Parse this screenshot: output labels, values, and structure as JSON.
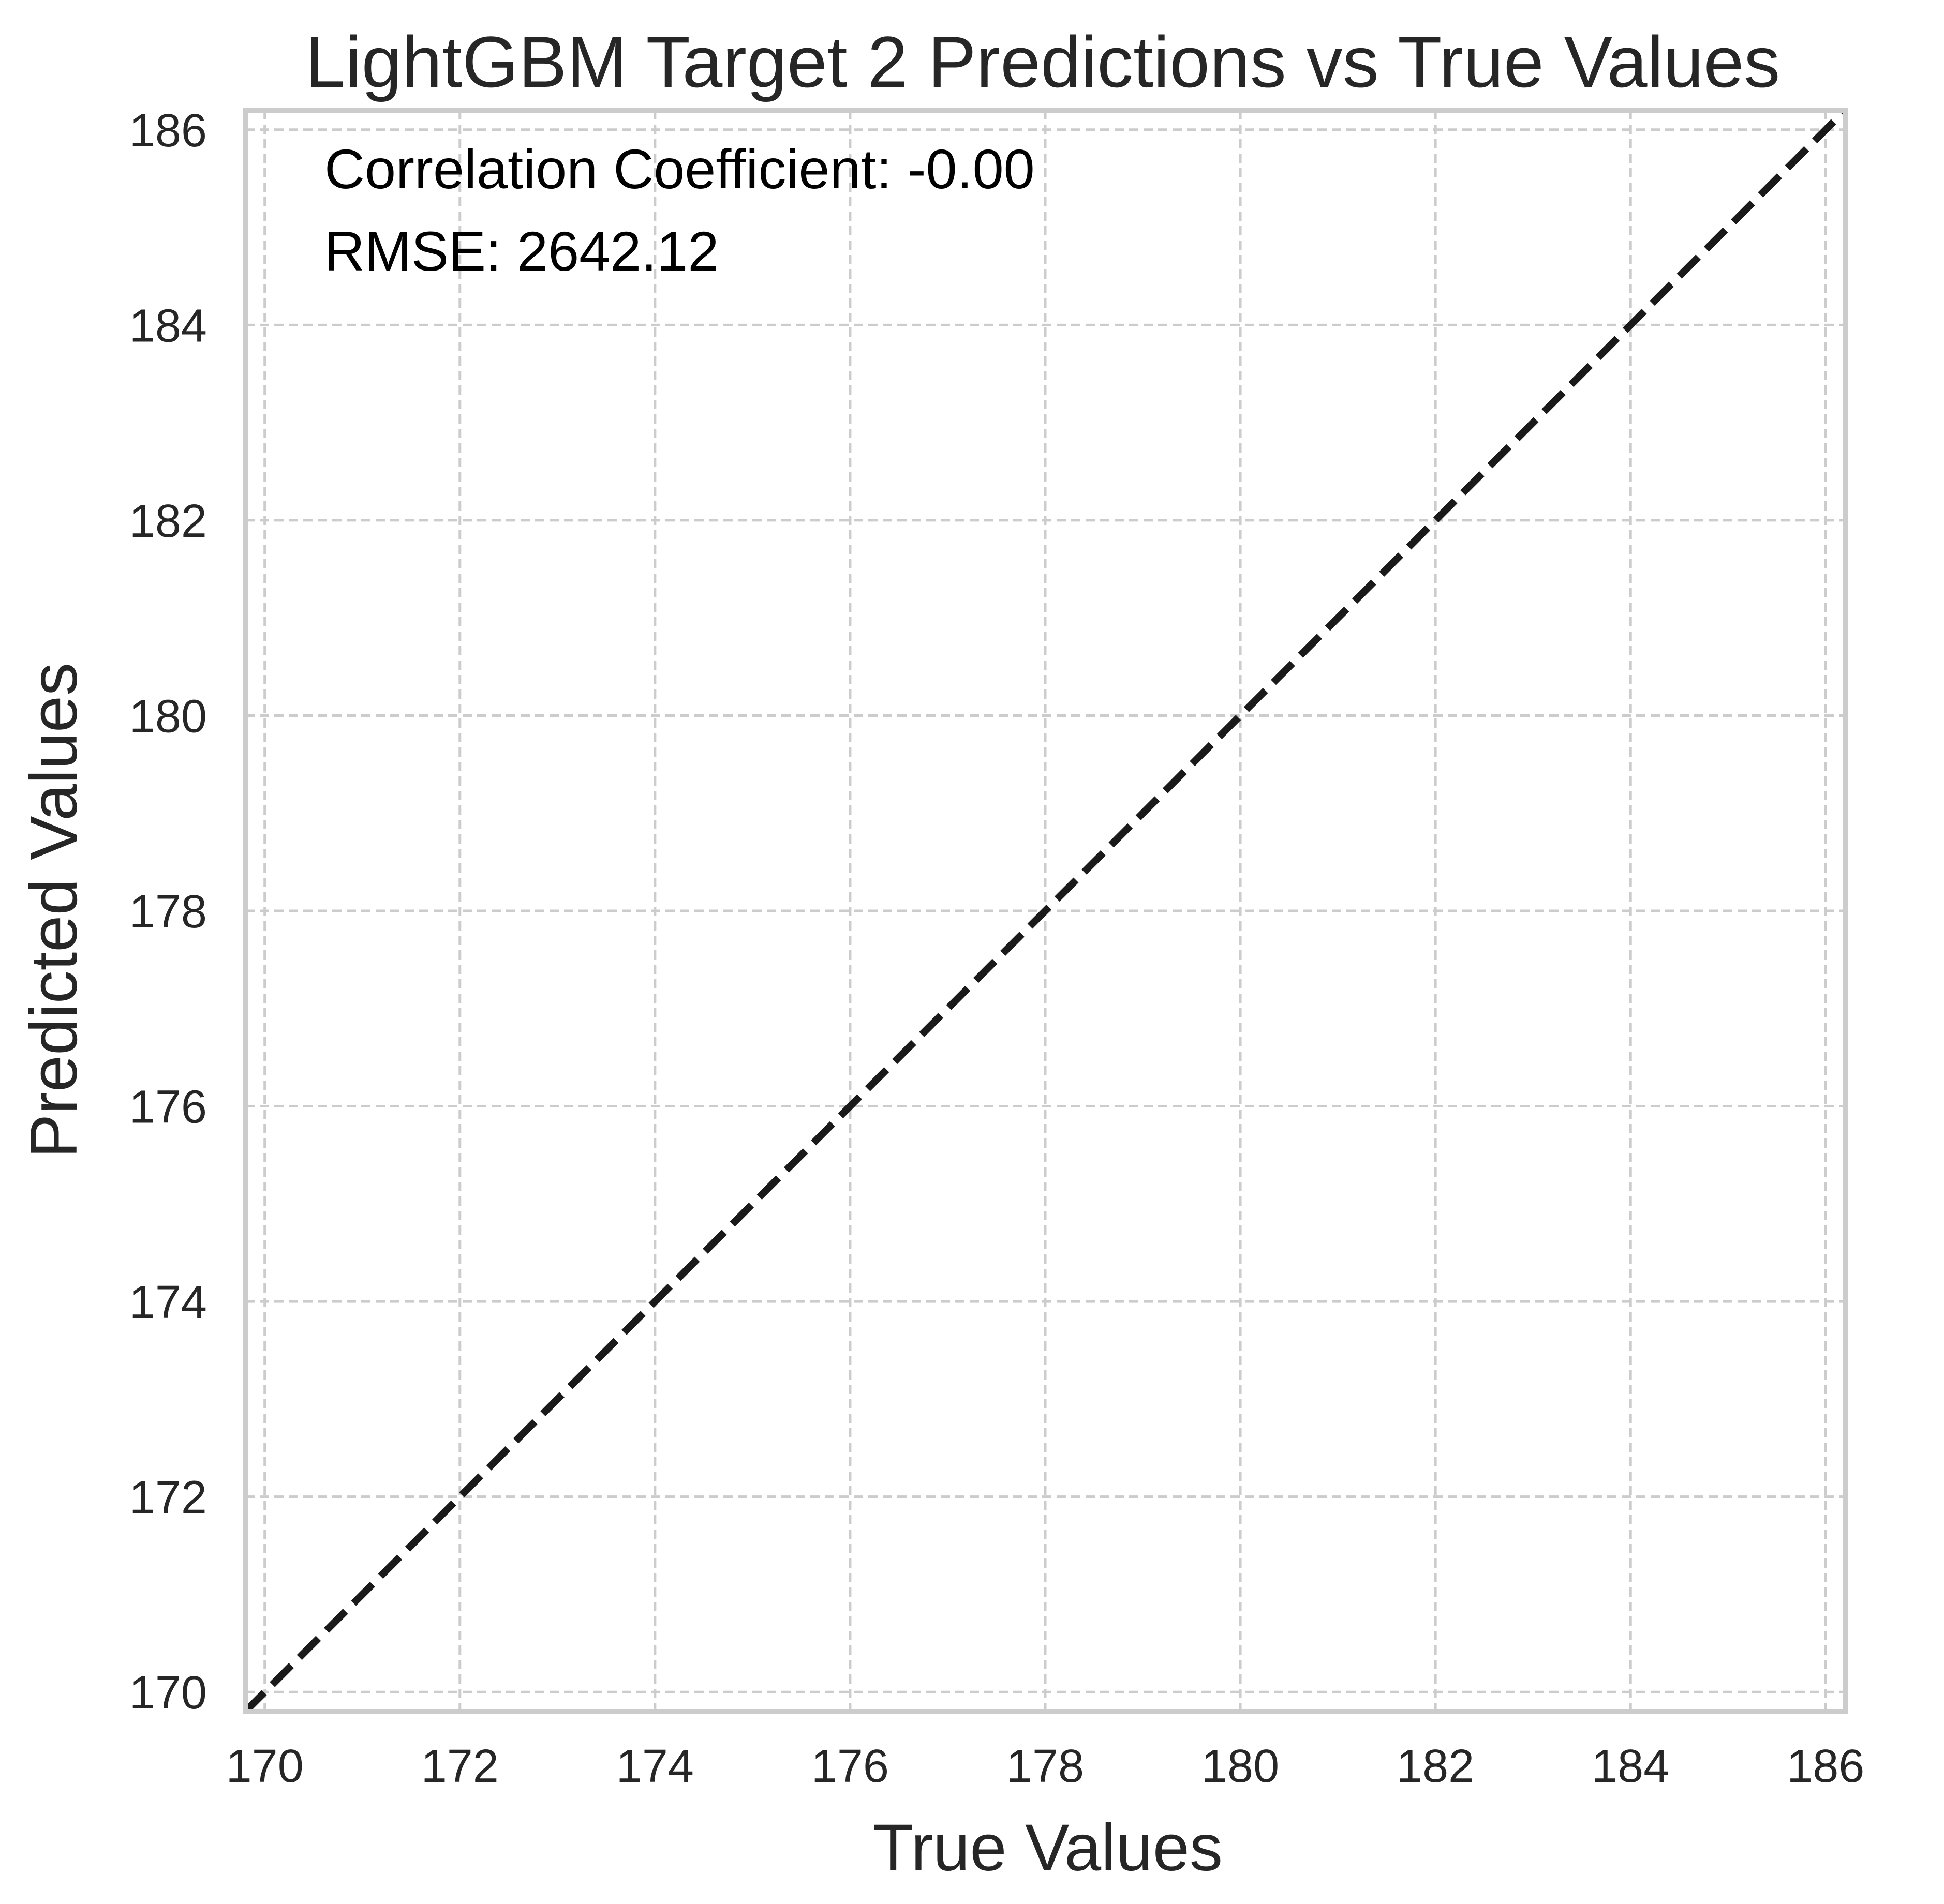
{
  "chart_data": {
    "type": "line",
    "title": "LightGBM Target 2 Predictions vs True Values",
    "xlabel": "True Values",
    "ylabel": "Predicted Values",
    "xlim": [
      169.8,
      186.2
    ],
    "ylim": [
      169.8,
      186.2
    ],
    "x_ticks": [
      170,
      172,
      174,
      176,
      178,
      180,
      182,
      184,
      186
    ],
    "y_ticks": [
      170,
      172,
      174,
      176,
      178,
      180,
      182,
      184,
      186
    ],
    "x_tick_labels": [
      "170",
      "172",
      "174",
      "176",
      "178",
      "180",
      "182",
      "184",
      "186"
    ],
    "y_tick_labels": [
      "170",
      "172",
      "174",
      "176",
      "178",
      "180",
      "182",
      "184",
      "186"
    ],
    "grid": true,
    "grid_style": "dashed",
    "series": [
      {
        "x": [
          169.8,
          186.2
        ],
        "y": [
          169.8,
          186.2
        ],
        "style": "dashed",
        "color": "#1a1a1a"
      }
    ],
    "annotations": [
      "Correlation Coefficient: -0.00",
      "RMSE: 2642.12"
    ]
  },
  "colors": {
    "text": "#262626",
    "grid": "#cccccc",
    "frame": "#cccccc",
    "line": "#1a1a1a",
    "background": "#ffffff"
  }
}
